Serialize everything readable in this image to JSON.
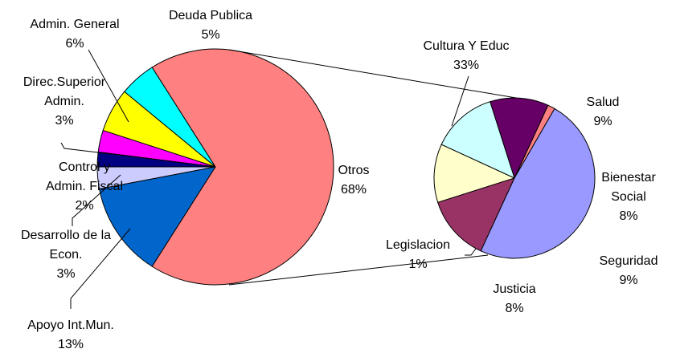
{
  "chart_data": [
    {
      "type": "pie",
      "categories": [
        "Otros",
        "Apoyo Int.Mun.",
        "Desarrollo de la Econ.",
        "Control y Admin. Fiscal",
        "Direc.Superior Admin.",
        "Admin. General",
        "Deuda Publica"
      ],
      "values": [
        68,
        13,
        3,
        2,
        3,
        6,
        5
      ],
      "value_labels": [
        "68%",
        "13%",
        "3%",
        "2%",
        "3%",
        "6%",
        "5%"
      ],
      "colors": [
        "#ff8080",
        "#0066cc",
        "#ccccff",
        "#000080",
        "#ff00ff",
        "#ffff00",
        "#00ffff"
      ]
    },
    {
      "type": "pie",
      "categories": [
        "Cultura Y Educ",
        "Salud",
        "Bienestar Social",
        "Seguridad",
        "Justicia",
        "Legislacion"
      ],
      "values": [
        33,
        9,
        8,
        9,
        8,
        1
      ],
      "value_labels": [
        "33%",
        "9%",
        "8%",
        "9%",
        "8%",
        "1%"
      ],
      "colors": [
        "#9999ff",
        "#993366",
        "#ffffcc",
        "#ccffff",
        "#660066",
        "#ff8080"
      ]
    }
  ]
}
